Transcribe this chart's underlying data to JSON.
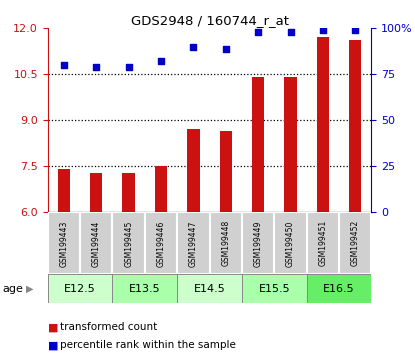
{
  "title": "GDS2948 / 160744_r_at",
  "samples": [
    "GSM199443",
    "GSM199444",
    "GSM199445",
    "GSM199446",
    "GSM199447",
    "GSM199448",
    "GSM199449",
    "GSM199450",
    "GSM199451",
    "GSM199452"
  ],
  "red_values": [
    7.42,
    7.28,
    7.3,
    7.52,
    8.72,
    8.65,
    10.4,
    10.42,
    11.72,
    11.62
  ],
  "blue_values": [
    80,
    79,
    79,
    82,
    90,
    89,
    98,
    98,
    99,
    99
  ],
  "age_groups": [
    {
      "label": "E12.5",
      "start": 0,
      "end": 2,
      "color": "#ccffcc"
    },
    {
      "label": "E13.5",
      "start": 2,
      "end": 4,
      "color": "#aaffaa"
    },
    {
      "label": "E14.5",
      "start": 4,
      "end": 6,
      "color": "#ccffcc"
    },
    {
      "label": "E15.5",
      "start": 6,
      "end": 8,
      "color": "#aaffaa"
    },
    {
      "label": "E16.5",
      "start": 8,
      "end": 10,
      "color": "#66ee66"
    }
  ],
  "left_ylim": [
    6,
    12
  ],
  "right_ylim": [
    0,
    100
  ],
  "left_yticks": [
    6,
    7.5,
    9,
    10.5,
    12
  ],
  "right_yticks": [
    0,
    25,
    50,
    75,
    100
  ],
  "right_yticklabels": [
    "0",
    "25",
    "50",
    "75",
    "100%"
  ],
  "bar_color": "#cc1111",
  "dot_color": "#0000cc",
  "bar_bottom": 6.0,
  "label_red": "transformed count",
  "label_blue": "percentile rank within the sample",
  "age_label": "age",
  "gridlines": [
    7.5,
    9,
    10.5
  ]
}
